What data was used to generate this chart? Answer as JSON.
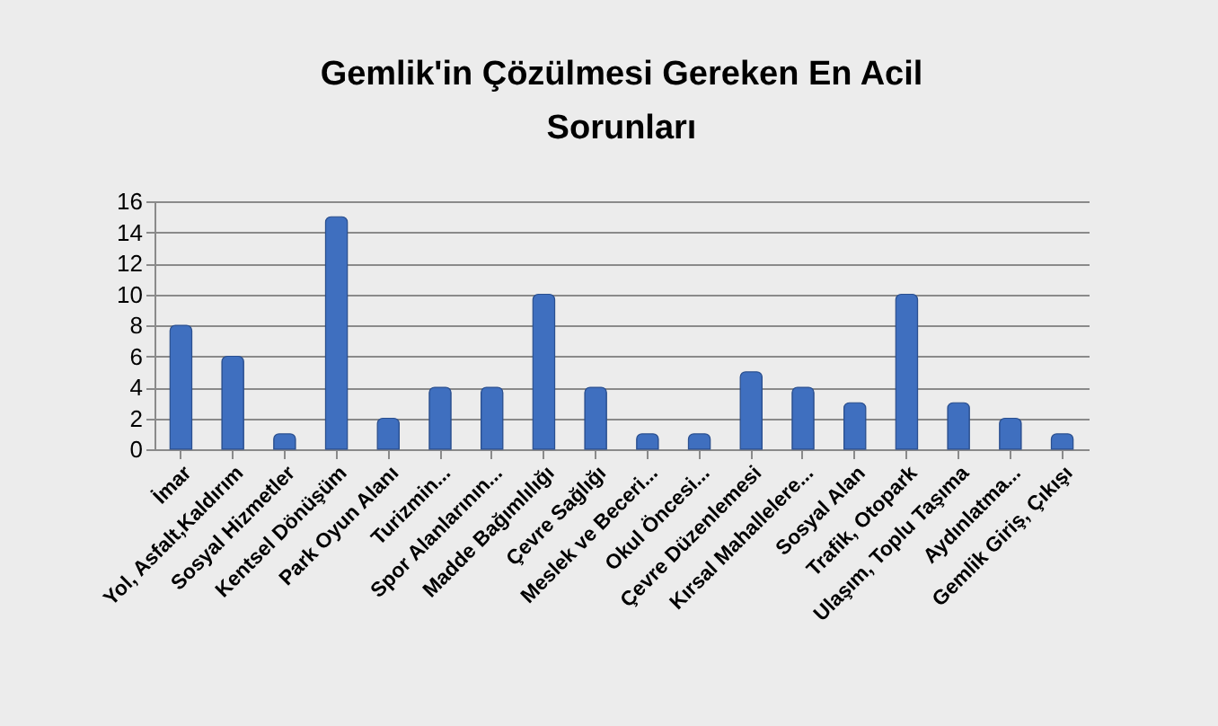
{
  "chart_data": {
    "type": "bar",
    "title": "Gemlik'in Çözülmesi Gereken En Acil Sorunları",
    "categories": [
      "İmar",
      "Yol, Asfalt,Kaldırım",
      "Sosyal Hizmetler",
      "Kentsel Dönüşüm",
      "Park Oyun Alanı",
      "Turizmin...",
      "Spor Alanlarının...",
      "Madde Bağımlılığı",
      "Çevre Sağlığı",
      "Meslek ve Beceri...",
      "Okul Öncesi...",
      "Çevre Düzenlemesi",
      "Kırsal Mahallelere...",
      "Sosyal Alan",
      "Trafik, Otopark",
      "Ulaşım, Toplu Taşıma",
      "Aydınlatma...",
      "Gemlik Giriş, Çıkışı"
    ],
    "values": [
      8,
      6,
      1,
      15,
      2,
      4,
      4,
      10,
      4,
      1,
      1,
      5,
      4,
      3,
      10,
      3,
      2,
      1
    ],
    "color": "#3f6fbf",
    "ylim": [
      0,
      16
    ],
    "yticks": [
      0,
      2,
      4,
      6,
      8,
      10,
      12,
      14,
      16
    ],
    "grid": "y"
  }
}
